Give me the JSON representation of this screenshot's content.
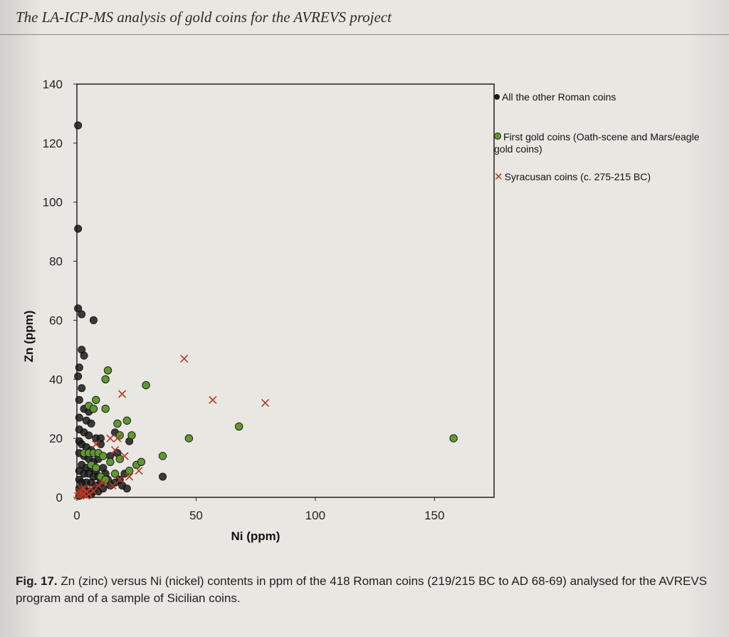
{
  "running_head": "The LA-ICP-MS analysis of gold coins for the AVREVS project",
  "caption": {
    "label": "Fig. 17.",
    "text": "Zn (zinc) versus Ni (nickel) contents in ppm of the 418 Roman coins (219/215 BC to AD 68-69) analysed for the AVREVS program and of a sample of Sicilian coins."
  },
  "legend": [
    {
      "marker": "dot",
      "color": "#1a1a1a",
      "label": "All the other Roman coins"
    },
    {
      "marker": "dot",
      "color": "#5f9a2e",
      "label": "First gold coins (Oath-scene and Mars/eagle gold coins)"
    },
    {
      "marker": "x",
      "color": "#b23a26",
      "label": "Syracusan coins (c. 275-215 BC)"
    }
  ],
  "chart_data": {
    "type": "scatter",
    "title": "",
    "xlabel": "Ni (ppm)",
    "ylabel": "Zn (ppm)",
    "xlim": [
      0,
      175
    ],
    "ylim": [
      0,
      140
    ],
    "xticks": [
      0,
      50,
      100,
      150
    ],
    "yticks": [
      0,
      20,
      40,
      60,
      80,
      100,
      120,
      140
    ],
    "grid": false,
    "legend_position": "right",
    "series": [
      {
        "name": "All the other Roman coins",
        "marker": "circle",
        "color": "#1a1a1a",
        "points": [
          [
            0.5,
            126
          ],
          [
            0.5,
            91
          ],
          [
            0.5,
            64
          ],
          [
            2,
            62
          ],
          [
            7,
            60
          ],
          [
            2,
            50
          ],
          [
            3,
            48
          ],
          [
            1,
            44
          ],
          [
            0.5,
            41
          ],
          [
            2,
            37
          ],
          [
            1,
            33
          ],
          [
            3,
            30
          ],
          [
            5,
            29
          ],
          [
            1,
            27
          ],
          [
            4,
            26
          ],
          [
            6,
            25
          ],
          [
            1,
            23
          ],
          [
            3,
            22
          ],
          [
            5,
            21
          ],
          [
            8,
            20
          ],
          [
            1,
            19
          ],
          [
            2,
            18
          ],
          [
            4,
            17
          ],
          [
            6,
            16
          ],
          [
            10,
            18
          ],
          [
            1,
            15
          ],
          [
            3,
            14
          ],
          [
            5,
            13
          ],
          [
            7,
            12
          ],
          [
            9,
            13
          ],
          [
            2,
            11
          ],
          [
            4,
            10
          ],
          [
            6,
            10
          ],
          [
            8,
            9
          ],
          [
            11,
            10
          ],
          [
            14,
            14
          ],
          [
            17,
            15
          ],
          [
            22,
            19
          ],
          [
            1,
            9
          ],
          [
            3,
            8
          ],
          [
            5,
            8
          ],
          [
            7,
            7
          ],
          [
            9,
            7
          ],
          [
            12,
            8
          ],
          [
            1,
            6
          ],
          [
            2,
            5
          ],
          [
            4,
            5
          ],
          [
            6,
            5
          ],
          [
            8,
            4
          ],
          [
            10,
            5
          ],
          [
            13,
            6
          ],
          [
            16,
            5
          ],
          [
            19,
            4
          ],
          [
            21,
            3
          ],
          [
            36,
            7
          ],
          [
            1,
            3
          ],
          [
            3,
            3
          ],
          [
            5,
            2
          ],
          [
            7,
            2
          ],
          [
            2,
            1
          ],
          [
            4,
            1
          ],
          [
            1,
            0.5
          ],
          [
            6,
            1
          ],
          [
            9,
            2
          ],
          [
            11,
            3
          ],
          [
            14,
            4
          ],
          [
            18,
            6
          ],
          [
            20,
            8
          ],
          [
            10,
            20
          ],
          [
            16,
            22
          ]
        ]
      },
      {
        "name": "First gold coins (Oath-scene and Mars/eagle gold coins)",
        "marker": "circle",
        "color": "#5f9a2e",
        "points": [
          [
            13,
            43
          ],
          [
            12,
            40
          ],
          [
            29,
            38
          ],
          [
            8,
            33
          ],
          [
            5,
            31
          ],
          [
            7,
            30
          ],
          [
            12,
            30
          ],
          [
            21,
            26
          ],
          [
            17,
            25
          ],
          [
            18,
            21
          ],
          [
            23,
            21
          ],
          [
            47,
            20
          ],
          [
            68,
            24
          ],
          [
            158,
            20
          ],
          [
            3,
            15
          ],
          [
            5,
            15
          ],
          [
            7,
            15
          ],
          [
            9,
            15
          ],
          [
            11,
            14
          ],
          [
            36,
            14
          ],
          [
            25,
            11
          ],
          [
            22,
            9
          ],
          [
            16,
            8
          ],
          [
            10,
            7
          ],
          [
            27,
            12
          ],
          [
            6,
            11
          ],
          [
            14,
            12
          ],
          [
            18,
            13
          ],
          [
            8,
            10
          ],
          [
            12,
            6
          ]
        ]
      },
      {
        "name": "Syracusan coins (c. 275-215 BC)",
        "marker": "x",
        "color": "#b23a26",
        "points": [
          [
            45,
            47
          ],
          [
            19,
            35
          ],
          [
            57,
            33
          ],
          [
            79,
            32
          ],
          [
            14,
            20
          ],
          [
            17,
            20
          ],
          [
            8,
            18
          ],
          [
            16,
            16
          ],
          [
            20,
            14
          ],
          [
            26,
            9
          ],
          [
            22,
            7
          ],
          [
            18,
            6
          ],
          [
            11,
            5
          ],
          [
            15,
            4
          ],
          [
            9,
            4
          ],
          [
            4,
            2
          ],
          [
            2,
            1
          ],
          [
            1,
            2
          ],
          [
            3,
            3
          ],
          [
            5,
            1
          ],
          [
            1,
            1
          ],
          [
            2,
            3
          ],
          [
            4,
            0.5
          ],
          [
            6,
            3
          ],
          [
            0.5,
            0.5
          ],
          [
            3,
            1
          ],
          [
            7,
            2
          ]
        ]
      }
    ]
  }
}
